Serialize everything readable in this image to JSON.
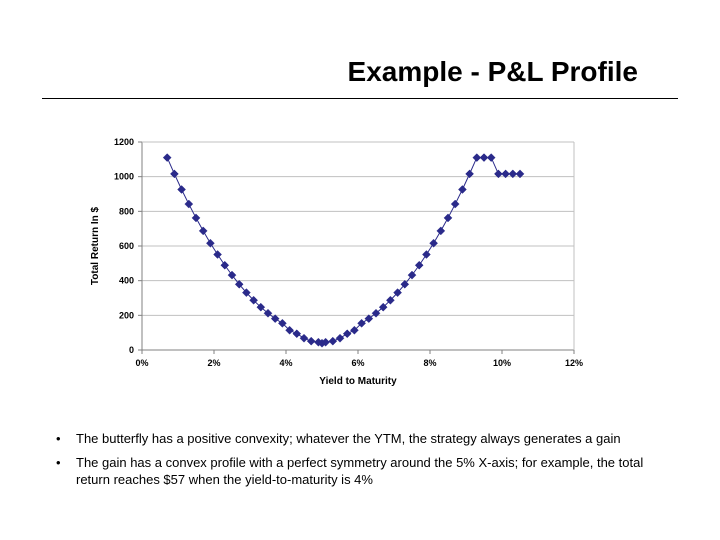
{
  "title": "Example - P&L Profile",
  "bullets": [
    "The butterfly has a positive convexity; whatever the YTM, the strategy always generates a gain",
    "The gain has a convex profile with a perfect symmetry around the 5% X-axis; for example, the total return reaches $57 when the yield-to-maturity is 4%"
  ],
  "chart": {
    "type": "line",
    "xlabel": "Yield to Maturity",
    "ylabel": "Total Return In $",
    "label_fontsize": 10,
    "tick_fontsize": 9,
    "xlim": [
      0,
      12
    ],
    "ylim": [
      0,
      1200
    ],
    "xticks": [
      0,
      2,
      4,
      6,
      8,
      10,
      12
    ],
    "xtick_labels": [
      "0%",
      "2%",
      "4%",
      "6%",
      "8%",
      "10%",
      "12%"
    ],
    "yticks": [
      0,
      200,
      400,
      600,
      800,
      1000,
      1200
    ],
    "ytick_labels": [
      "0",
      "200",
      "400",
      "600",
      "800",
      "1000",
      "1200"
    ],
    "background_color": "#ffffff",
    "grid_color": "#c0c0c0",
    "axis_color": "#808080",
    "line_color": "#2a2a8a",
    "line_width": 1,
    "marker_style": "diamond",
    "marker_size": 4,
    "marker_color": "#2a2a8a",
    "label_color": "#000000",
    "tick_color": "#000000",
    "series_x": [
      0.7,
      0.9,
      1.1,
      1.3,
      1.5,
      1.7,
      1.9,
      2.1,
      2.3,
      2.5,
      2.7,
      2.9,
      3.1,
      3.3,
      3.5,
      3.7,
      3.9,
      4.0,
      4.1,
      4.3,
      4.5,
      4.7,
      4.9,
      5.0,
      5.1,
      5.3,
      5.5,
      5.7,
      5.9,
      6.1,
      6.3,
      6.5,
      6.7,
      6.9,
      7.1,
      7.3,
      7.5,
      7.7,
      7.9,
      8.1,
      8.3,
      8.5,
      8.7,
      8.9,
      9.1,
      9.3,
      9.5,
      9.7,
      9.9,
      10.1,
      10.3,
      10.5
    ],
    "series_y": [
      1110,
      1016,
      926,
      842,
      762,
      687,
      616,
      551,
      489,
      432,
      379,
      331,
      287,
      247,
      212,
      181,
      154,
      57,
      114,
      94,
      68,
      51,
      45,
      39,
      45,
      51,
      68,
      94,
      114,
      154,
      181,
      212,
      247,
      287,
      331,
      379,
      432,
      489,
      551,
      616,
      687,
      762,
      842,
      926,
      1016,
      1110,
      1110,
      1110,
      1016,
      1016,
      1016,
      1016
    ]
  }
}
